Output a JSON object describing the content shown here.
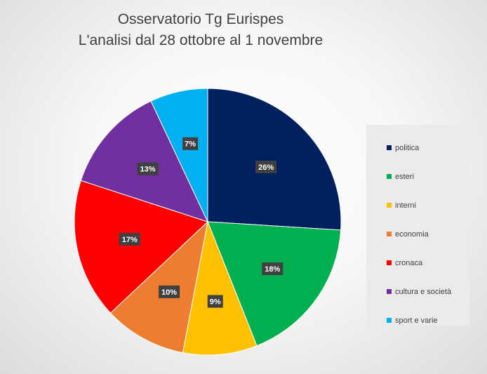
{
  "chart_data": {
    "type": "pie",
    "title": [
      "Osservatorio Tg Eurispes",
      "L'analisi dal 28 ottobre al 1 novembre"
    ],
    "slices": [
      {
        "label": "politica",
        "value": 26,
        "color": "#002060"
      },
      {
        "label": "esteri",
        "value": 18,
        "color": "#00B050"
      },
      {
        "label": "interni",
        "value": 9,
        "color": "#FFC000"
      },
      {
        "label": "economia",
        "value": 10,
        "color": "#ED7D31"
      },
      {
        "label": "cronaca",
        "value": 17,
        "color": "#FF0000"
      },
      {
        "label": "cultura e società",
        "value": 13,
        "color": "#7030A0"
      },
      {
        "label": "sport e varie",
        "value": 7,
        "color": "#00B0F0"
      }
    ],
    "value_suffix": "%",
    "legend_position": "right"
  }
}
